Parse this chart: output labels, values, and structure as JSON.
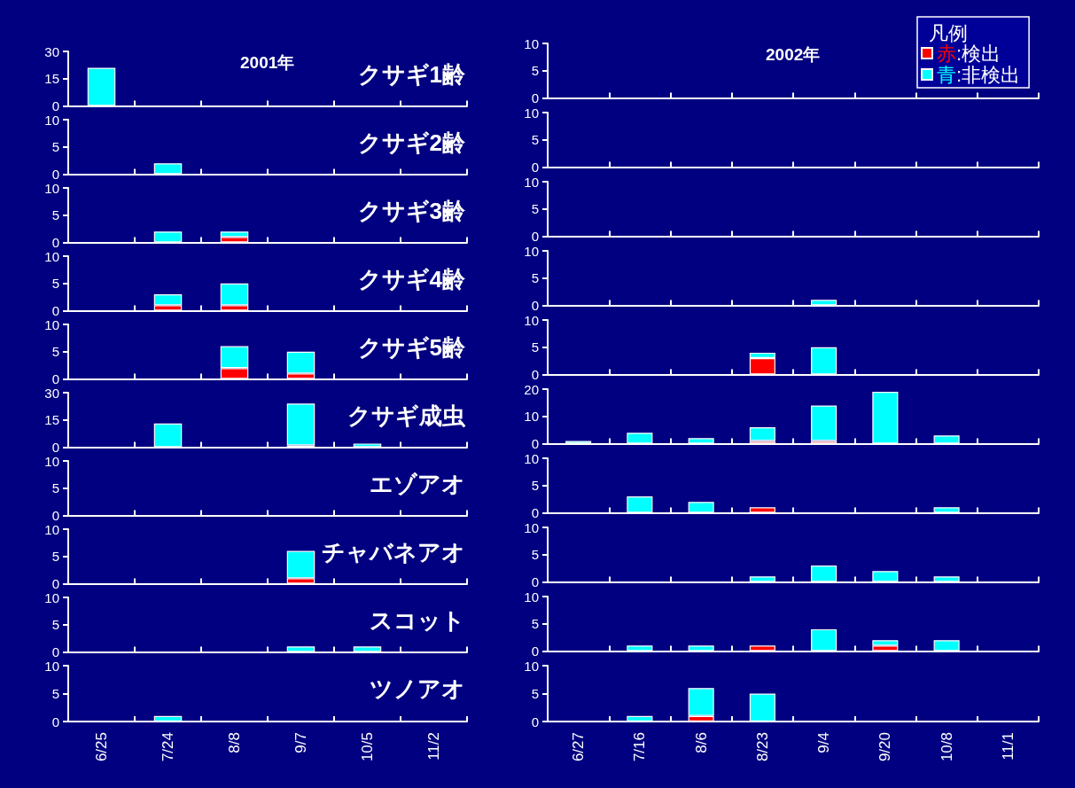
{
  "chart_data": [
    {
      "type": "bar",
      "stacked": true,
      "title": "クサギ1齢",
      "subtitle": "2001年",
      "categories": [
        null,
        null,
        null,
        null,
        null,
        null
      ],
      "series": [
        {
          "color": "#ff0000",
          "values": [
            null,
            null,
            null,
            null,
            null,
            null
          ]
        },
        {
          "color": "#00ffff",
          "values": [
            21,
            null,
            null,
            null,
            null,
            null
          ]
        }
      ],
      "ylim": [
        0,
        30
      ],
      "yticks": [
        0,
        15,
        30
      ],
      "tick_labels": "y"
    },
    {
      "type": "bar",
      "stacked": true,
      "subtitle": "2002年",
      "legend_title": "凡例",
      "legend": "top right",
      "categories": [
        null,
        null,
        null,
        null,
        null,
        null,
        null,
        null
      ],
      "series": [
        {
          "name": "赤:検出",
          "color": "#ff0000",
          "values": [
            null,
            null,
            null,
            null,
            null,
            null,
            null,
            null
          ]
        },
        {
          "name": "青:非検出",
          "color": "#00ffff",
          "values": [
            null,
            null,
            null,
            null,
            null,
            null,
            null,
            null
          ]
        }
      ],
      "ylim": [
        0,
        10
      ],
      "yticks": [
        0,
        5,
        10
      ],
      "tick_labels": "y"
    },
    {
      "type": "bar",
      "stacked": true,
      "title": "クサギ2齢",
      "categories": [
        null,
        null,
        null,
        null,
        null,
        null
      ],
      "series": [
        {
          "color": "#ff0000",
          "values": [
            null,
            null,
            null,
            null,
            null,
            null
          ]
        },
        {
          "color": "#00ffff",
          "values": [
            null,
            2,
            null,
            null,
            null,
            null
          ]
        }
      ],
      "ylim": [
        0,
        10
      ],
      "yticks": [
        0,
        5,
        10
      ],
      "tick_labels": "y"
    },
    {
      "type": "bar",
      "stacked": true,
      "categories": [
        null,
        null,
        null,
        null,
        null,
        null,
        null,
        null
      ],
      "series": [
        {
          "color": "#ff0000",
          "values": [
            null,
            null,
            null,
            null,
            null,
            null,
            null,
            null
          ]
        },
        {
          "color": "#00ffff",
          "values": [
            null,
            null,
            null,
            null,
            null,
            null,
            null,
            null
          ]
        }
      ],
      "ylim": [
        0,
        10
      ],
      "yticks": [
        0,
        5,
        10
      ],
      "tick_labels": "y"
    },
    {
      "type": "bar",
      "stacked": true,
      "title": "クサギ3齢",
      "categories": [
        null,
        null,
        null,
        null,
        null,
        null
      ],
      "series": [
        {
          "color": "#ff0000",
          "values": [
            null,
            null,
            1,
            null,
            null,
            null
          ]
        },
        {
          "color": "#00ffff",
          "values": [
            null,
            2,
            1,
            null,
            null,
            null
          ]
        }
      ],
      "ylim": [
        0,
        10
      ],
      "yticks": [
        0,
        5,
        10
      ],
      "tick_labels": "y"
    },
    {
      "type": "bar",
      "stacked": true,
      "categories": [
        null,
        null,
        null,
        null,
        null,
        null,
        null,
        null
      ],
      "series": [
        {
          "color": "#ff0000",
          "values": [
            null,
            null,
            null,
            null,
            null,
            null,
            null,
            null
          ]
        },
        {
          "color": "#00ffff",
          "values": [
            null,
            null,
            null,
            null,
            null,
            null,
            null,
            null
          ]
        }
      ],
      "ylim": [
        0,
        10
      ],
      "yticks": [
        0,
        5,
        10
      ],
      "tick_labels": "y"
    },
    {
      "type": "bar",
      "stacked": true,
      "title": "クサギ4齢",
      "categories": [
        null,
        null,
        null,
        null,
        null,
        null
      ],
      "series": [
        {
          "color": "#ff0000",
          "values": [
            null,
            1,
            1,
            null,
            null,
            null
          ]
        },
        {
          "color": "#00ffff",
          "values": [
            null,
            2,
            4,
            null,
            null,
            null
          ]
        }
      ],
      "ylim": [
        0,
        10
      ],
      "yticks": [
        0,
        5,
        10
      ],
      "tick_labels": "y"
    },
    {
      "type": "bar",
      "stacked": true,
      "categories": [
        null,
        null,
        null,
        null,
        null,
        null,
        null,
        null
      ],
      "series": [
        {
          "color": "#ff0000",
          "values": [
            null,
            null,
            null,
            null,
            null,
            null,
            null,
            null
          ]
        },
        {
          "color": "#00ffff",
          "values": [
            null,
            null,
            null,
            null,
            1,
            null,
            null,
            null
          ]
        }
      ],
      "ylim": [
        0,
        10
      ],
      "yticks": [
        0,
        5,
        10
      ],
      "tick_labels": "y"
    },
    {
      "type": "bar",
      "stacked": true,
      "title": "クサギ5齢",
      "categories": [
        null,
        null,
        null,
        null,
        null,
        null
      ],
      "series": [
        {
          "color": "#ff0000",
          "values": [
            null,
            null,
            2,
            1,
            null,
            null
          ]
        },
        {
          "color": "#00ffff",
          "values": [
            null,
            null,
            4,
            4,
            null,
            null
          ]
        }
      ],
      "ylim": [
        0,
        10
      ],
      "yticks": [
        0,
        5,
        10
      ],
      "tick_labels": "y"
    },
    {
      "type": "bar",
      "stacked": true,
      "categories": [
        null,
        null,
        null,
        null,
        null,
        null,
        null,
        null
      ],
      "series": [
        {
          "color": "#ff0000",
          "values": [
            null,
            null,
            null,
            3,
            null,
            null,
            null,
            null
          ]
        },
        {
          "color": "#00ffff",
          "values": [
            null,
            null,
            null,
            1,
            5,
            null,
            null,
            null
          ]
        }
      ],
      "ylim": [
        0,
        10
      ],
      "yticks": [
        0,
        5,
        10
      ],
      "tick_labels": "y"
    },
    {
      "type": "bar",
      "stacked": true,
      "title": "クサギ成虫",
      "categories": [
        null,
        null,
        null,
        null,
        null,
        null
      ],
      "series": [
        {
          "color": "#ff0000",
          "values": [
            null,
            null,
            null,
            1,
            null,
            null
          ]
        },
        {
          "color": "#00ffff",
          "values": [
            null,
            13,
            null,
            23,
            2,
            null
          ]
        }
      ],
      "ylim": [
        0,
        30
      ],
      "yticks": [
        0,
        15,
        30
      ],
      "tick_labels": "y"
    },
    {
      "type": "bar",
      "stacked": true,
      "categories": [
        null,
        null,
        null,
        null,
        null,
        null,
        null,
        null
      ],
      "series": [
        {
          "color": "#ff0000",
          "values": [
            null,
            null,
            null,
            1,
            1,
            null,
            null,
            null
          ]
        },
        {
          "color": "#00ffff",
          "values": [
            1,
            4,
            2,
            5,
            13,
            19,
            3,
            null
          ]
        }
      ],
      "ylim": [
        0,
        20
      ],
      "yticks": [
        0,
        10,
        20
      ],
      "tick_labels": "y"
    },
    {
      "type": "bar",
      "stacked": true,
      "title": "エゾアオ",
      "categories": [
        null,
        null,
        null,
        null,
        null,
        null
      ],
      "series": [
        {
          "color": "#ff0000",
          "values": [
            null,
            null,
            null,
            null,
            null,
            null
          ]
        },
        {
          "color": "#00ffff",
          "values": [
            null,
            null,
            null,
            null,
            null,
            null
          ]
        }
      ],
      "ylim": [
        0,
        10
      ],
      "yticks": [
        0,
        5,
        10
      ],
      "tick_labels": "y"
    },
    {
      "type": "bar",
      "stacked": true,
      "categories": [
        null,
        null,
        null,
        null,
        null,
        null,
        null,
        null
      ],
      "series": [
        {
          "color": "#ff0000",
          "values": [
            null,
            null,
            null,
            1,
            null,
            null,
            null,
            null
          ]
        },
        {
          "color": "#00ffff",
          "values": [
            null,
            3,
            2,
            null,
            null,
            null,
            1,
            null
          ]
        }
      ],
      "ylim": [
        0,
        10
      ],
      "yticks": [
        0,
        5,
        10
      ],
      "tick_labels": "y"
    },
    {
      "type": "bar",
      "stacked": true,
      "title": "チャバネアオ",
      "categories": [
        null,
        null,
        null,
        null,
        null,
        null
      ],
      "series": [
        {
          "color": "#ff0000",
          "values": [
            null,
            null,
            null,
            1,
            null,
            null
          ]
        },
        {
          "color": "#00ffff",
          "values": [
            null,
            null,
            null,
            5,
            null,
            null
          ]
        }
      ],
      "ylim": [
        0,
        10
      ],
      "yticks": [
        0,
        5,
        10
      ],
      "tick_labels": "y"
    },
    {
      "type": "bar",
      "stacked": true,
      "categories": [
        null,
        null,
        null,
        null,
        null,
        null,
        null,
        null
      ],
      "series": [
        {
          "color": "#ff0000",
          "values": [
            null,
            null,
            null,
            null,
            null,
            null,
            null,
            null
          ]
        },
        {
          "color": "#00ffff",
          "values": [
            null,
            null,
            null,
            1,
            3,
            2,
            1,
            null
          ]
        }
      ],
      "ylim": [
        0,
        10
      ],
      "yticks": [
        0,
        5,
        10
      ],
      "tick_labels": "y"
    },
    {
      "type": "bar",
      "stacked": true,
      "title": "スコット",
      "categories": [
        null,
        null,
        null,
        null,
        null,
        null
      ],
      "series": [
        {
          "color": "#ff0000",
          "values": [
            null,
            null,
            null,
            null,
            null,
            null
          ]
        },
        {
          "color": "#00ffff",
          "values": [
            null,
            null,
            null,
            1,
            1,
            null
          ]
        }
      ],
      "ylim": [
        0,
        10
      ],
      "yticks": [
        0,
        5,
        10
      ],
      "tick_labels": "y"
    },
    {
      "type": "bar",
      "stacked": true,
      "categories": [
        null,
        null,
        null,
        null,
        null,
        null,
        null,
        null
      ],
      "series": [
        {
          "color": "#ff0000",
          "values": [
            null,
            null,
            null,
            1,
            null,
            1,
            null,
            null
          ]
        },
        {
          "color": "#00ffff",
          "values": [
            null,
            1,
            1,
            null,
            4,
            1,
            2,
            null
          ]
        }
      ],
      "ylim": [
        0,
        10
      ],
      "yticks": [
        0,
        5,
        10
      ],
      "tick_labels": "y"
    },
    {
      "type": "bar",
      "stacked": true,
      "title": "ツノアオ",
      "categories": [
        "6/25",
        "7/24",
        "8/8",
        "9/7",
        "10/5",
        "11/2"
      ],
      "series": [
        {
          "color": "#ff0000",
          "values": [
            null,
            null,
            null,
            null,
            null,
            null
          ]
        },
        {
          "color": "#00ffff",
          "values": [
            null,
            1,
            null,
            null,
            null,
            null
          ]
        }
      ],
      "ylim": [
        0,
        10
      ],
      "yticks": [
        0,
        5,
        10
      ]
    },
    {
      "type": "bar",
      "stacked": true,
      "categories": [
        "6/27",
        "7/16",
        "8/6",
        "8/23",
        "9/4",
        "9/20",
        "10/8",
        "11/1"
      ],
      "series": [
        {
          "color": "#ff0000",
          "values": [
            null,
            null,
            1,
            null,
            null,
            null,
            null,
            null
          ]
        },
        {
          "color": "#00ffff",
          "values": [
            null,
            1,
            5,
            5,
            null,
            null,
            null,
            null
          ]
        }
      ],
      "ylim": [
        0,
        10
      ],
      "yticks": [
        0,
        5,
        10
      ]
    }
  ]
}
